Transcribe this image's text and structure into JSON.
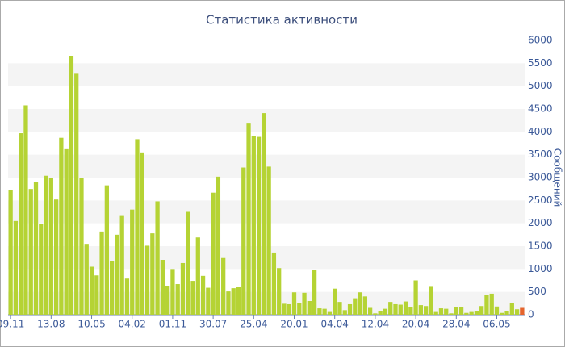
{
  "chart_data": {
    "type": "bar",
    "title": "Статистика активности",
    "y_label": "Сообщений",
    "categories": [
      "09.11",
      null,
      null,
      null,
      null,
      null,
      null,
      null,
      "13.08",
      null,
      null,
      null,
      null,
      null,
      null,
      null,
      "10.05",
      null,
      null,
      null,
      null,
      null,
      null,
      null,
      "04.02",
      null,
      null,
      null,
      null,
      null,
      null,
      null,
      "01.11",
      null,
      null,
      null,
      null,
      null,
      null,
      null,
      "30.07",
      null,
      null,
      null,
      null,
      null,
      null,
      null,
      "25.04",
      null,
      null,
      null,
      null,
      null,
      null,
      null,
      "20.01",
      null,
      null,
      null,
      null,
      null,
      null,
      null,
      "04.04",
      null,
      null,
      null,
      null,
      null,
      null,
      null,
      "12.04",
      null,
      null,
      null,
      null,
      null,
      null,
      null,
      "20.04",
      null,
      null,
      null,
      null,
      null,
      null,
      null,
      "28.04",
      null,
      null,
      null,
      null,
      null,
      null,
      null,
      "06.05",
      null,
      null,
      null,
      null,
      null
    ],
    "values": [
      2720,
      2050,
      3970,
      4580,
      2750,
      2900,
      1980,
      3040,
      3000,
      2520,
      3870,
      3620,
      5650,
      5270,
      3000,
      1550,
      1050,
      860,
      1820,
      2830,
      1180,
      1750,
      2160,
      790,
      2300,
      3840,
      3550,
      1510,
      1780,
      2480,
      1200,
      620,
      1000,
      670,
      1130,
      2250,
      740,
      1690,
      850,
      590,
      2670,
      3020,
      1240,
      510,
      580,
      600,
      3220,
      4180,
      3910,
      3890,
      4410,
      3240,
      1360,
      1020,
      240,
      230,
      490,
      260,
      480,
      300,
      980,
      140,
      130,
      60,
      570,
      280,
      100,
      230,
      360,
      490,
      400,
      150,
      30,
      80,
      130,
      280,
      230,
      220,
      290,
      170,
      750,
      210,
      190,
      610,
      60,
      140,
      130,
      30,
      160,
      160,
      40,
      60,
      80,
      190,
      440,
      460,
      180,
      40,
      80,
      250,
      120,
      150
    ],
    "color": "#b5d334",
    "last_bar_color": "#e5642c",
    "ylim": [
      0,
      6000
    ],
    "yticks": [
      0,
      500,
      1000,
      1500,
      2000,
      2500,
      3000,
      3500,
      4000,
      4500,
      5000,
      5500,
      6000
    ],
    "grid": true
  }
}
